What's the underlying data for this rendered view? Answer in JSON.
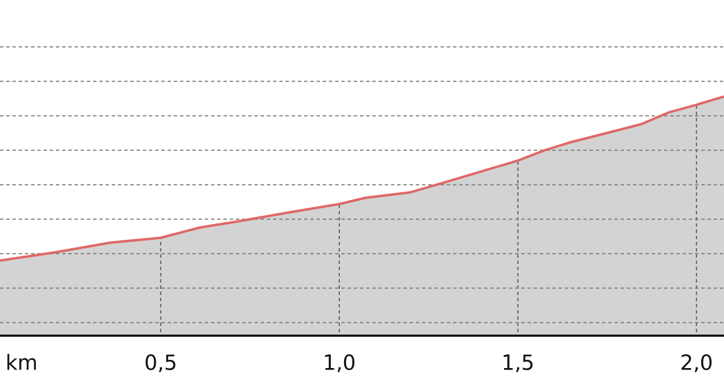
{
  "chart_data": {
    "type": "area",
    "x_label": "km",
    "x": [
      0.05,
      0.205,
      0.359,
      0.5,
      0.61,
      0.707,
      0.861,
      1.0,
      1.073,
      1.199,
      1.305,
      1.402,
      1.5,
      1.575,
      1.643,
      1.749,
      1.846,
      1.923,
      2.0,
      2.077
    ],
    "values": [
      1.8,
      2.04,
      2.32,
      2.46,
      2.76,
      2.92,
      3.2,
      3.44,
      3.62,
      3.78,
      4.1,
      4.4,
      4.7,
      5.0,
      5.22,
      5.5,
      5.76,
      6.1,
      6.32,
      6.56
    ],
    "color": "#e06666",
    "fill": "#d3d3d3",
    "xlim": [
      0.05,
      2.077
    ],
    "xticks": [
      {
        "value": 0.5,
        "label": "0,5"
      },
      {
        "value": 1.0,
        "label": "1,0"
      },
      {
        "value": 1.5,
        "label": "1,5"
      },
      {
        "value": 2.0,
        "label": "2,0"
      }
    ],
    "ylim": [
      -0.38,
      9.36
    ],
    "yticks": [
      0,
      1,
      2,
      3,
      4,
      5,
      6,
      7,
      8
    ],
    "grid": true
  }
}
